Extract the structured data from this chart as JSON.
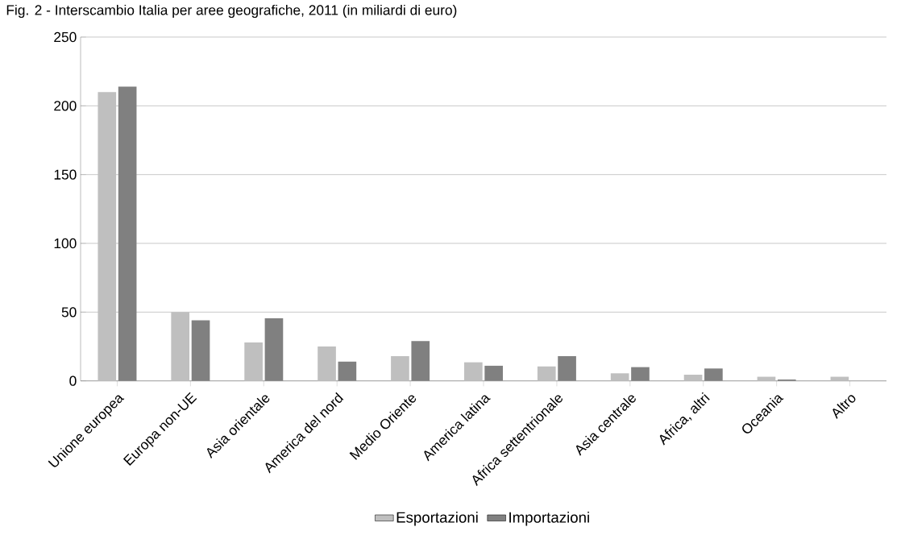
{
  "chart_data": {
    "type": "bar",
    "title": "Fig. 2 - Interscambio Italia per aree geografiche, 2011 (in miliardi di euro)",
    "categories": [
      "Unione europea",
      "Europa non-UE",
      "Asia orientale",
      "America del nord",
      "Medio Oriente",
      "America latina",
      "Africa settentrionale",
      "Asia centrale",
      "Africa, altri",
      "Oceania",
      "Altro"
    ],
    "series": [
      {
        "name": "Esportazioni",
        "color": "#bfbfbf",
        "values": [
          210,
          50,
          28,
          25,
          18,
          13.5,
          10.5,
          5.5,
          4.5,
          3,
          3
        ]
      },
      {
        "name": "Importazioni",
        "color": "#808080",
        "values": [
          214,
          44,
          45.5,
          14,
          29,
          11,
          18,
          10,
          9,
          1,
          0
        ]
      }
    ],
    "ylim": [
      0,
      250
    ],
    "yticks": [
      0,
      50,
      100,
      150,
      200,
      250
    ],
    "grid": "y",
    "legend": "bottom"
  }
}
